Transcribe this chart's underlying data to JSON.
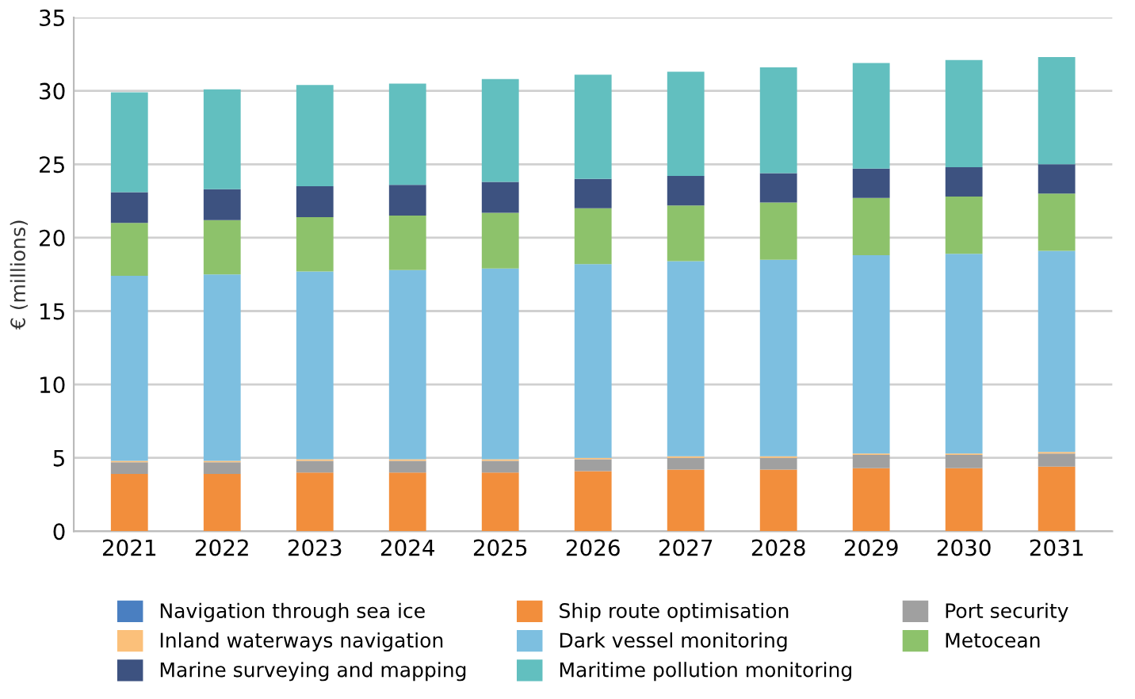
{
  "chart_data": {
    "type": "bar",
    "stacked": true,
    "ylabel": "€ (millions)",
    "categories": [
      "2021",
      "2022",
      "2023",
      "2024",
      "2025",
      "2026",
      "2027",
      "2028",
      "2029",
      "2030",
      "2031"
    ],
    "series": [
      {
        "name": "Navigation through sea ice",
        "color": "#4a7fc1",
        "values": [
          0,
          0,
          0,
          0,
          0,
          0,
          0,
          0,
          0,
          0,
          0
        ]
      },
      {
        "name": "Ship route optimisation",
        "color": "#f28e3c",
        "values": [
          3.9,
          3.9,
          4.0,
          4.0,
          4.0,
          4.1,
          4.2,
          4.2,
          4.3,
          4.3,
          4.4
        ]
      },
      {
        "name": "Port security",
        "color": "#a0a0a0",
        "values": [
          0.8,
          0.8,
          0.8,
          0.8,
          0.8,
          0.8,
          0.8,
          0.8,
          0.9,
          0.9,
          0.9
        ]
      },
      {
        "name": "Inland waterways navigation",
        "color": "#fbc07a",
        "values": [
          0.1,
          0.1,
          0.1,
          0.1,
          0.1,
          0.1,
          0.1,
          0.1,
          0.1,
          0.1,
          0.1
        ]
      },
      {
        "name": "Dark vessel monitoring",
        "color": "#7dbfe0",
        "values": [
          12.6,
          12.7,
          12.8,
          12.9,
          13.0,
          13.2,
          13.3,
          13.4,
          13.5,
          13.6,
          13.7
        ]
      },
      {
        "name": "Metocean",
        "color": "#8dc26b",
        "values": [
          3.6,
          3.7,
          3.7,
          3.7,
          3.8,
          3.8,
          3.8,
          3.9,
          3.9,
          3.9,
          3.9
        ]
      },
      {
        "name": "Marine surveying and mapping",
        "color": "#3d5280",
        "values": [
          2.1,
          2.1,
          2.1,
          2.1,
          2.1,
          2.0,
          2.0,
          2.0,
          2.0,
          2.0,
          2.0
        ]
      },
      {
        "name": "Maritime pollution monitoring",
        "color": "#62bfbf",
        "values": [
          6.8,
          6.8,
          6.9,
          6.9,
          7.0,
          7.1,
          7.1,
          7.2,
          7.2,
          7.3,
          7.3
        ]
      }
    ],
    "ylim": [
      0,
      35
    ],
    "yticks": [
      0,
      5,
      10,
      15,
      20,
      25,
      30,
      35
    ],
    "grid": "y",
    "legend": "bottom"
  }
}
